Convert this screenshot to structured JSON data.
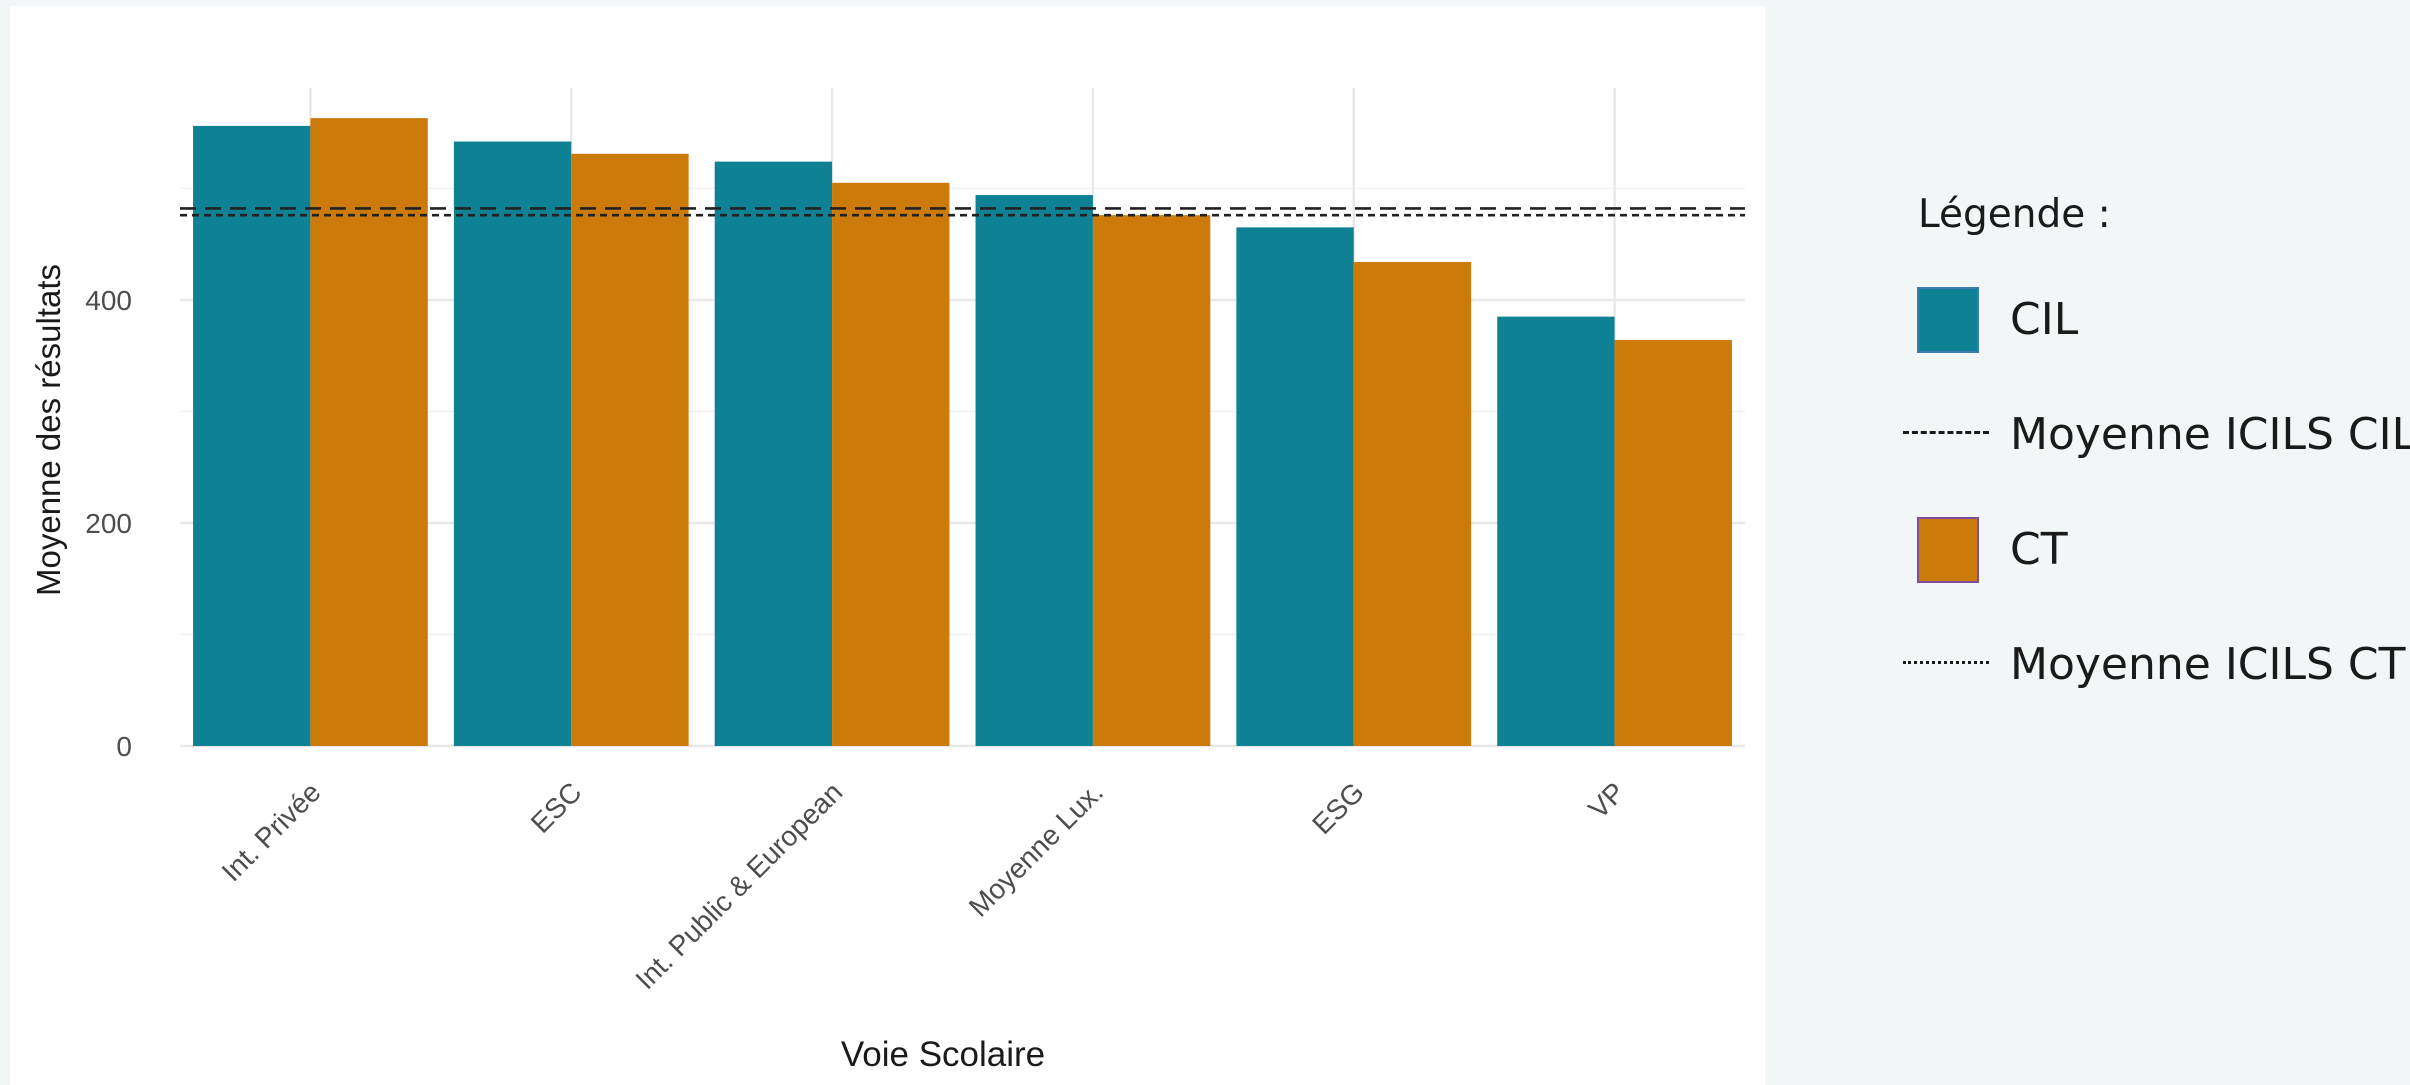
{
  "chart_data": {
    "type": "bar",
    "title": "",
    "xlabel": "Voie Scolaire",
    "ylabel": "Moyenne des résultats",
    "categories": [
      "Int. Privée",
      "ESC",
      "Int. Public & European",
      "Moyenne Lux.",
      "ESG",
      "VP"
    ],
    "series": [
      {
        "name": "CIL",
        "values": [
          556,
          542,
          524,
          494,
          465,
          385
        ],
        "color": "#0e8294"
      },
      {
        "name": "CT",
        "values": [
          563,
          531,
          505,
          476,
          434,
          364
        ],
        "color": "#cc7a0a"
      }
    ],
    "reference_lines": [
      {
        "name": "Moyenne ICILS CIL",
        "value": 482,
        "style": "dashed"
      },
      {
        "name": "Moyenne ICILS CT",
        "value": 476,
        "style": "dotted"
      }
    ],
    "yticks": [
      0,
      200,
      400
    ],
    "ylim": [
      0,
      590
    ],
    "grid": true,
    "x_tick_rotation_deg": 45,
    "legend_position": "right",
    "legend_title": "Légende :"
  },
  "legend": {
    "title": "Légende :",
    "items": [
      {
        "label": "CIL",
        "kind": "fill",
        "color": "#0e8294"
      },
      {
        "label": "Moyenne ICILS CIL",
        "kind": "dashed"
      },
      {
        "label": "CT",
        "kind": "fill",
        "color": "#cc7a0a"
      },
      {
        "label": "Moyenne ICILS CT",
        "kind": "dotted"
      }
    ]
  }
}
